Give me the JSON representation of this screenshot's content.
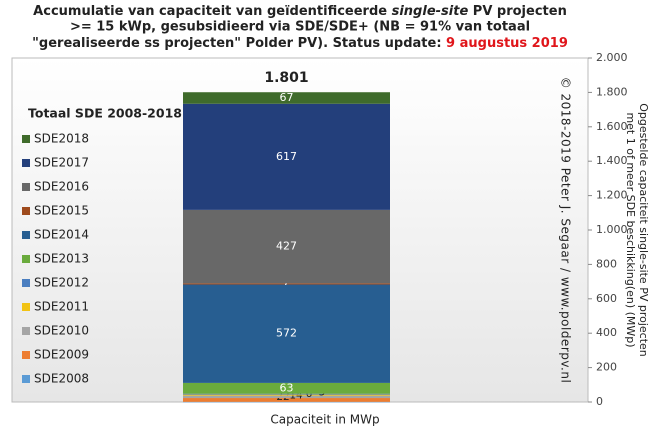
{
  "chart_data": {
    "type": "stacked-bar",
    "title_parts": [
      "Accumulatie van capaciteit van geïdentificeerde ",
      "single-site",
      " PV projecten",
      ">= 15 kWp, gesubsidieerd via SDE/SDE+ (NB = 91% van totaal",
      "\"gerealiseerde ss projecten\" Polder PV). Status update: ",
      "9 augustus 2019"
    ],
    "x_label": "Capaciteit in MWp",
    "y_label_lines": [
      "Opgestelde capaciteit single-site PV projecten",
      "met 1 of meer SDE beschikking(en) (MWp)"
    ],
    "watermark": "© 2018-2019 Peter J. Segaar / www.polderpv.nl",
    "legend_title": "Totaal SDE 2008-2018",
    "total": {
      "value": 1801,
      "label": "1.801"
    },
    "categories": [
      null
    ],
    "series": [
      {
        "name": "SDE2008",
        "color": "#5b9bd5",
        "values": [
          1
        ],
        "value_labels": [
          null
        ]
      },
      {
        "name": "SDE2009",
        "color": "#ed7d31",
        "values": [
          22
        ]
      },
      {
        "name": "SDE2010",
        "color": "#a5a5a5",
        "values": [
          14
        ]
      },
      {
        "name": "SDE2011",
        "color": "#f2c314",
        "values": [
          6
        ]
      },
      {
        "name": "SDE2012",
        "color": "#4a7ec0",
        "values": [
          5
        ]
      },
      {
        "name": "SDE2013",
        "color": "#6aab3d",
        "values": [
          63
        ]
      },
      {
        "name": "SDE2014",
        "color": "#275e91",
        "values": [
          572
        ]
      },
      {
        "name": "SDE2015",
        "color": "#9e4a1c",
        "values": [
          7
        ]
      },
      {
        "name": "SDE2016",
        "color": "#686868",
        "values": [
          427
        ]
      },
      {
        "name": "SDE2017",
        "color": "#233f7b",
        "values": [
          617
        ]
      },
      {
        "name": "SDE2018",
        "color": "#3f6b2b",
        "values": [
          67
        ]
      }
    ],
    "ylim": [
      0,
      2000
    ],
    "yticks": [
      0,
      200,
      400,
      600,
      800,
      {
        "value": 1000,
        "label": "1.000"
      },
      {
        "value": 1200,
        "label": "1.200"
      },
      {
        "value": 1400,
        "label": "1.400"
      },
      {
        "value": 1600,
        "label": "1.600"
      },
      {
        "value": 1800,
        "label": "1.800"
      },
      {
        "value": 2000,
        "label": "2.000"
      }
    ],
    "axis_side": "right",
    "legend_position": "left"
  }
}
